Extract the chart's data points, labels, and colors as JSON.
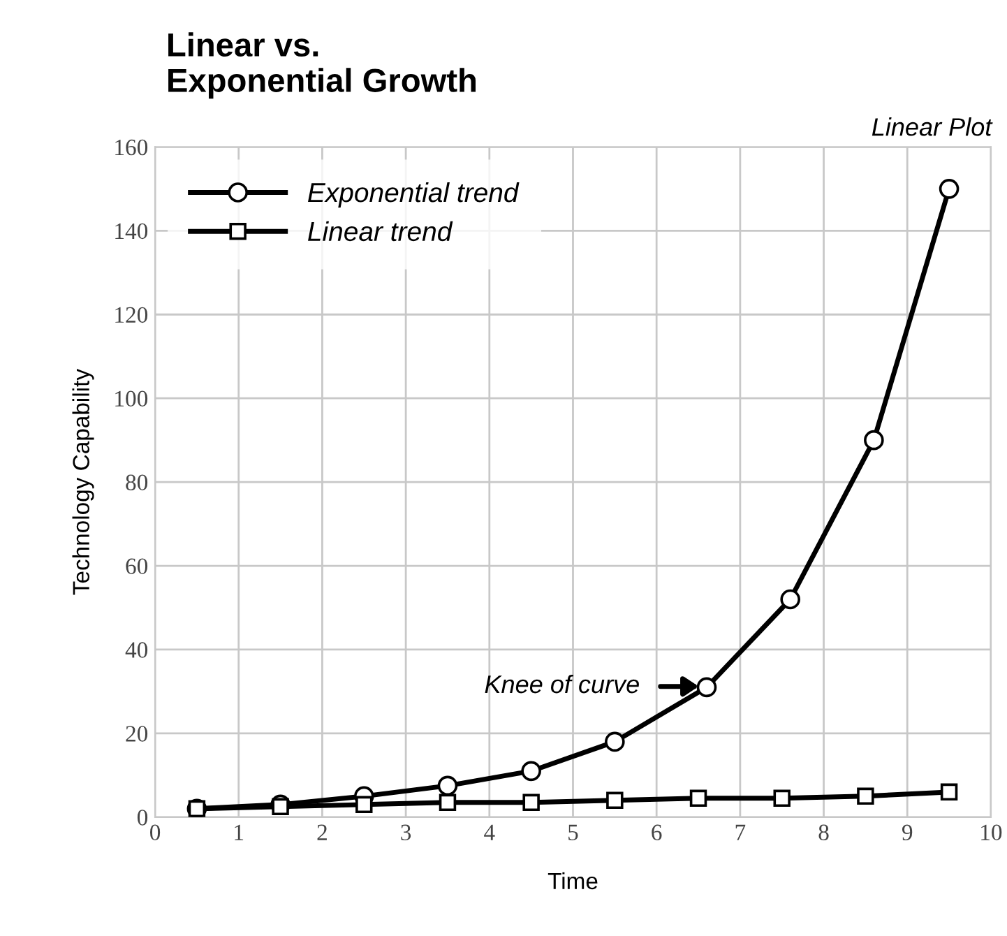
{
  "chart_data": {
    "type": "line",
    "title": "Linear vs.\nExponential Growth",
    "xlabel": "Time",
    "ylabel": "Technology Capability",
    "annotations": [
      "Linear Plot",
      "Knee of curve"
    ],
    "series": [
      {
        "name": "Exponential trend",
        "color": "#000000",
        "marker": "circle",
        "x": [
          0.5,
          1.5,
          2.5,
          3.5,
          4.5,
          5.5,
          6.6,
          7.6,
          8.6,
          9.5
        ],
        "values": [
          2,
          3,
          5,
          7.5,
          11,
          18,
          31,
          52,
          90,
          150
        ]
      },
      {
        "name": "Linear trend",
        "color": "#000000",
        "marker": "square",
        "x": [
          0.5,
          1.5,
          2.5,
          3.5,
          4.5,
          5.5,
          6.5,
          7.5,
          8.5,
          9.5
        ],
        "values": [
          2,
          2.5,
          3,
          3.5,
          3.5,
          4,
          4.5,
          4.5,
          5,
          6
        ]
      }
    ],
    "xlim": [
      0,
      10
    ],
    "ylim": [
      0,
      160
    ],
    "xticks": [
      0,
      1,
      2,
      3,
      4,
      5,
      6,
      7,
      8,
      9,
      10
    ],
    "yticks": [
      0,
      20,
      40,
      60,
      80,
      100,
      120,
      140,
      160
    ],
    "grid": true,
    "legend": "top left",
    "line_style": "solid"
  }
}
